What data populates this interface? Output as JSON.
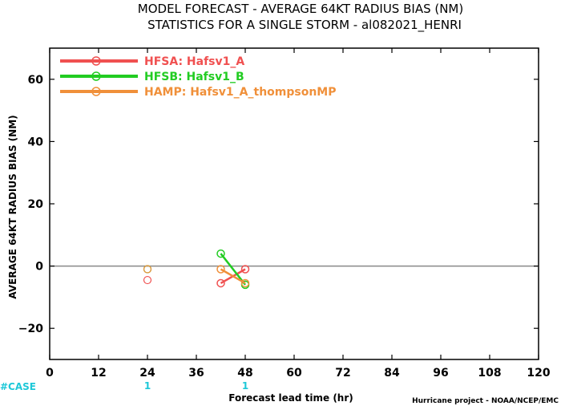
{
  "chart_data": {
    "type": "line",
    "title": "MODEL FORECAST - AVERAGE 64KT RADIUS BIAS (NM)",
    "subtitle": "STATISTICS FOR A SINGLE STORM - al082021_HENRI",
    "xlabel": "Forecast lead time (hr)",
    "ylabel": "AVERAGE 64KT RADIUS BIAS (NM)",
    "xlim": [
      0,
      120
    ],
    "ylim": [
      -30,
      70
    ],
    "xticks": [
      0,
      12,
      24,
      36,
      48,
      60,
      72,
      84,
      96,
      108,
      120
    ],
    "yticks": [
      -20,
      0,
      20,
      40,
      60
    ],
    "legend_position": "top-left",
    "case_label": "#CASE",
    "case_counts": [
      {
        "x": 24,
        "label": "1"
      },
      {
        "x": 48,
        "label": "1"
      }
    ],
    "series": [
      {
        "name": "HFSA: Hafsv1_A",
        "color": "#f05050",
        "points": [
          {
            "x": 24,
            "y": -4.5,
            "open": true
          },
          {
            "x": 42,
            "y": -5.5,
            "open": false
          },
          {
            "x": 48,
            "y": -1.0,
            "open": false
          }
        ]
      },
      {
        "name": "HFSB: Hafsv1_B",
        "color": "#22cc22",
        "points": [
          {
            "x": 24,
            "y": -1.0,
            "open": true
          },
          {
            "x": 42,
            "y": 4.0,
            "open": false
          },
          {
            "x": 48,
            "y": -6.0,
            "open": false
          }
        ]
      },
      {
        "name": "HAMP: Hafsv1_A_thompsonMP",
        "color": "#f0903a",
        "points": [
          {
            "x": 24,
            "y": -1.0,
            "open": true
          },
          {
            "x": 42,
            "y": -1.0,
            "open": false
          },
          {
            "x": 48,
            "y": -5.5,
            "open": false
          }
        ]
      }
    ],
    "zero_line": true,
    "grid": false
  },
  "footer": {
    "credit": "Hurricane project - NOAA/NCEP/EMC"
  },
  "colors": {
    "case_color": "#1ec8d8",
    "axis": "#000000",
    "zero_line": "#888888"
  }
}
